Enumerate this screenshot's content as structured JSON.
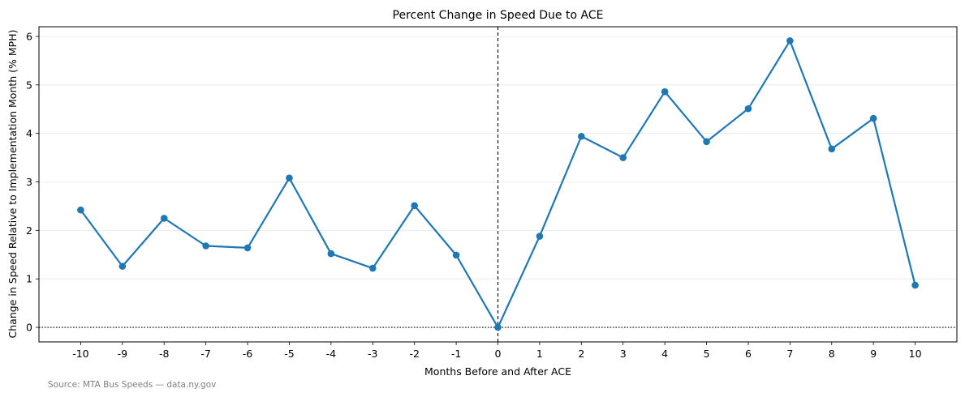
{
  "chart_data": {
    "type": "line",
    "title": "Percent Change in Speed Due to ACE",
    "xlabel": "Months Before and After ACE",
    "ylabel": "Change in Speed Relative to Implementation Month (% MPH)",
    "x": [
      -10,
      -9,
      -8,
      -7,
      -6,
      -5,
      -4,
      -3,
      -2,
      -1,
      0,
      1,
      2,
      3,
      4,
      5,
      6,
      7,
      8,
      9,
      10
    ],
    "x_tick_labels": [
      "-10",
      "-9",
      "-8",
      "-7",
      "-6",
      "-5",
      "-4",
      "-3",
      "-2",
      "-1",
      "0",
      "1",
      "2",
      "3",
      "4",
      "5",
      "6",
      "7",
      "8",
      "9",
      "10"
    ],
    "series": [
      {
        "values": [
          2.42,
          1.26,
          2.25,
          1.68,
          1.64,
          3.08,
          1.52,
          1.22,
          2.51,
          1.49,
          0.0,
          1.88,
          3.94,
          3.5,
          4.86,
          3.83,
          4.51,
          5.91,
          3.68,
          4.31,
          0.87
        ],
        "color": "#1f77b4"
      }
    ],
    "xlim": [
      -11,
      11
    ],
    "ylim": [
      -0.3,
      6.2
    ],
    "y_ticks": [
      0,
      1,
      2,
      3,
      4,
      5,
      6
    ],
    "y_tick_labels": [
      "0",
      "1",
      "2",
      "3",
      "4",
      "5",
      "6"
    ],
    "grid": "horizontal",
    "reference_lines": [
      {
        "axis": "x",
        "value": 0,
        "style": "dashed",
        "color": "#000000"
      },
      {
        "axis": "y",
        "value": 0,
        "style": "dotted",
        "color": "#000000"
      }
    ]
  },
  "footer": {
    "source": "Source: MTA Bus Speeds — data.ny.gov"
  }
}
